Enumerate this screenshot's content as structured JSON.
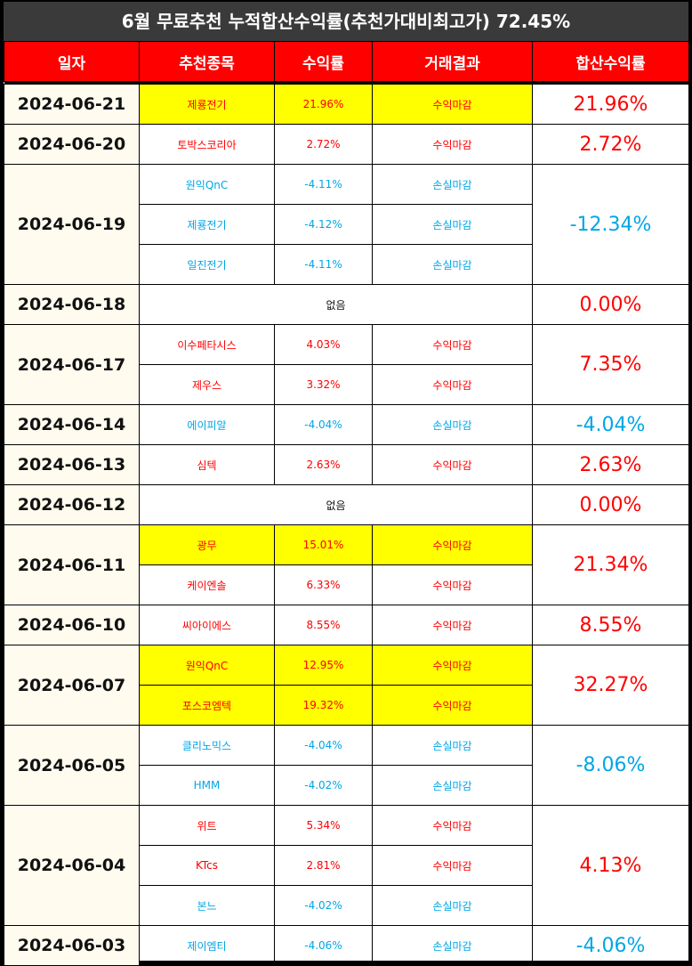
{
  "title": "6월 무료추천 누적합산수익률(추천가대비최고가) 72.45%",
  "headers": [
    "일자",
    "추천종목",
    "수익률",
    "거래결과",
    "합산수익률"
  ],
  "groups": [
    {
      "date": "2024-06-21",
      "total": "21.96%",
      "sign": "pos",
      "rows": [
        {
          "stock": "제룡전기",
          "ret": "21.96%",
          "result": "수익마감",
          "sign": "pos",
          "hl": true
        }
      ]
    },
    {
      "date": "2024-06-20",
      "total": "2.72%",
      "sign": "pos",
      "rows": [
        {
          "stock": "토박스코리아",
          "ret": "2.72%",
          "result": "수익마감",
          "sign": "pos",
          "hl": false
        }
      ]
    },
    {
      "date": "2024-06-19",
      "total": "-12.34%",
      "sign": "neg",
      "rows": [
        {
          "stock": "원익QnC",
          "ret": "-4.11%",
          "result": "손실마감",
          "sign": "neg",
          "hl": false
        },
        {
          "stock": "제룡전기",
          "ret": "-4.12%",
          "result": "손실마감",
          "sign": "neg",
          "hl": false
        },
        {
          "stock": "일진전기",
          "ret": "-4.11%",
          "result": "손실마감",
          "sign": "neg",
          "hl": false
        }
      ]
    },
    {
      "date": "2024-06-18",
      "total": "0.00%",
      "sign": "pos",
      "none": "없음",
      "rows": []
    },
    {
      "date": "2024-06-17",
      "total": "7.35%",
      "sign": "pos",
      "rows": [
        {
          "stock": "이수페타시스",
          "ret": "4.03%",
          "result": "수익마감",
          "sign": "pos",
          "hl": false
        },
        {
          "stock": "제우스",
          "ret": "3.32%",
          "result": "수익마감",
          "sign": "pos",
          "hl": false
        }
      ]
    },
    {
      "date": "2024-06-14",
      "total": "-4.04%",
      "sign": "neg",
      "rows": [
        {
          "stock": "에이피알",
          "ret": "-4.04%",
          "result": "손실마감",
          "sign": "neg",
          "hl": false
        }
      ]
    },
    {
      "date": "2024-06-13",
      "total": "2.63%",
      "sign": "pos",
      "rows": [
        {
          "stock": "심텍",
          "ret": "2.63%",
          "result": "수익마감",
          "sign": "pos",
          "hl": false
        }
      ]
    },
    {
      "date": "2024-06-12",
      "total": "0.00%",
      "sign": "pos",
      "none": "없음",
      "rows": []
    },
    {
      "date": "2024-06-11",
      "total": "21.34%",
      "sign": "pos",
      "rows": [
        {
          "stock": "광무",
          "ret": "15.01%",
          "result": "수익마감",
          "sign": "pos",
          "hl": true
        },
        {
          "stock": "케이엔솔",
          "ret": "6.33%",
          "result": "수익마감",
          "sign": "pos",
          "hl": false
        }
      ]
    },
    {
      "date": "2024-06-10",
      "total": "8.55%",
      "sign": "pos",
      "rows": [
        {
          "stock": "씨아이에스",
          "ret": "8.55%",
          "result": "수익마감",
          "sign": "pos",
          "hl": false
        }
      ]
    },
    {
      "date": "2024-06-07",
      "total": "32.27%",
      "sign": "pos",
      "rows": [
        {
          "stock": "원익QnC",
          "ret": "12.95%",
          "result": "수익마감",
          "sign": "pos",
          "hl": true
        },
        {
          "stock": "포스코엠텍",
          "ret": "19.32%",
          "result": "수익마감",
          "sign": "pos",
          "hl": true
        }
      ]
    },
    {
      "date": "2024-06-05",
      "total": "-8.06%",
      "sign": "neg",
      "rows": [
        {
          "stock": "클리노믹스",
          "ret": "-4.04%",
          "result": "손실마감",
          "sign": "neg",
          "hl": false
        },
        {
          "stock": "HMM",
          "ret": "-4.02%",
          "result": "손실마감",
          "sign": "neg",
          "hl": false
        }
      ]
    },
    {
      "date": "2024-06-04",
      "total": "4.13%",
      "sign": "pos",
      "rows": [
        {
          "stock": "위트",
          "ret": "5.34%",
          "result": "수익마감",
          "sign": "pos",
          "hl": false
        },
        {
          "stock": "KTcs",
          "ret": "2.81%",
          "result": "수익마감",
          "sign": "pos",
          "hl": false
        },
        {
          "stock": "본느",
          "ret": "-4.02%",
          "result": "손실마감",
          "sign": "neg",
          "hl": false
        }
      ]
    },
    {
      "date": "2024-06-03",
      "total": "-4.06%",
      "sign": "neg",
      "rows": [
        {
          "stock": "제이엠티",
          "ret": "-4.06%",
          "result": "손실마감",
          "sign": "neg",
          "hl": false
        }
      ]
    }
  ]
}
